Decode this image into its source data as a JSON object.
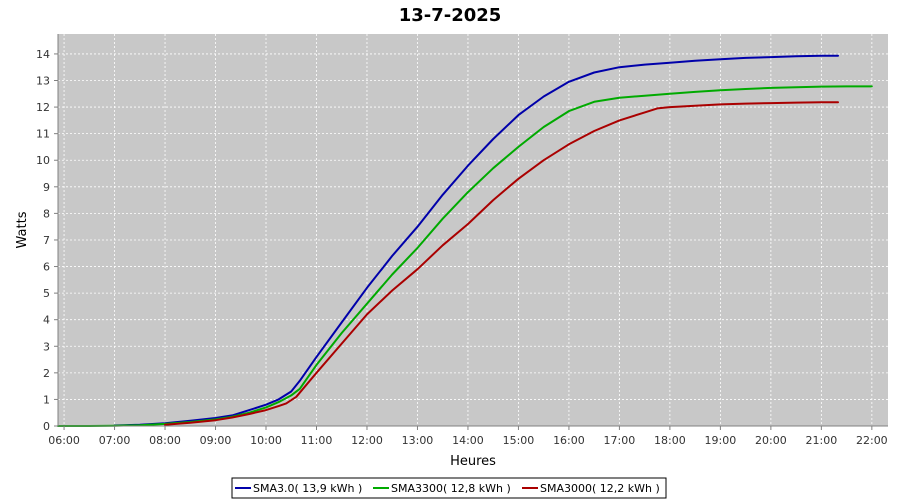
{
  "chart_data": {
    "type": "line",
    "title": "13-7-2025",
    "xlabel": "Heures",
    "ylabel": "Watts",
    "xlim": [
      5.88,
      22.32
    ],
    "ylim": [
      0,
      14.75
    ],
    "grid": true,
    "legend_position": "bottom",
    "x_ticks": [
      {
        "value": 6,
        "label": "06:00"
      },
      {
        "value": 7,
        "label": "07:00"
      },
      {
        "value": 8,
        "label": "08:00"
      },
      {
        "value": 9,
        "label": "09:00"
      },
      {
        "value": 10,
        "label": "10:00"
      },
      {
        "value": 11,
        "label": "11:00"
      },
      {
        "value": 12,
        "label": "12:00"
      },
      {
        "value": 13,
        "label": "13:00"
      },
      {
        "value": 14,
        "label": "14:00"
      },
      {
        "value": 15,
        "label": "15:00"
      },
      {
        "value": 16,
        "label": "16:00"
      },
      {
        "value": 17,
        "label": "17:00"
      },
      {
        "value": 18,
        "label": "18:00"
      },
      {
        "value": 19,
        "label": "19:00"
      },
      {
        "value": 20,
        "label": "20:00"
      },
      {
        "value": 21,
        "label": "21:00"
      },
      {
        "value": 22,
        "label": "22:00"
      }
    ],
    "y_ticks": [
      {
        "value": 0,
        "label": "0"
      },
      {
        "value": 1,
        "label": "1"
      },
      {
        "value": 2,
        "label": "2"
      },
      {
        "value": 3,
        "label": "3"
      },
      {
        "value": 4,
        "label": "4"
      },
      {
        "value": 5,
        "label": "5"
      },
      {
        "value": 6,
        "label": "6"
      },
      {
        "value": 7,
        "label": "7"
      },
      {
        "value": 8,
        "label": "8"
      },
      {
        "value": 9,
        "label": "9"
      },
      {
        "value": 10,
        "label": "10"
      },
      {
        "value": 11,
        "label": "11"
      },
      {
        "value": 12,
        "label": "12"
      },
      {
        "value": 13,
        "label": "13"
      },
      {
        "value": 14,
        "label": "14"
      }
    ],
    "series": [
      {
        "name": "SMA3.0( 13,9 kWh )",
        "color": "#0000aa",
        "x": [
          7.0,
          7.5,
          8.0,
          8.5,
          9.0,
          9.33,
          9.67,
          10.0,
          10.25,
          10.5,
          10.67,
          11.0,
          11.5,
          12.0,
          12.5,
          13.0,
          13.5,
          14.0,
          14.5,
          15.0,
          15.5,
          16.0,
          16.5,
          17.0,
          17.5,
          18.0,
          18.5,
          19.0,
          19.5,
          20.0,
          20.5,
          21.0,
          21.33
        ],
        "y": [
          0.02,
          0.05,
          0.1,
          0.2,
          0.3,
          0.4,
          0.6,
          0.8,
          1.0,
          1.3,
          1.7,
          2.6,
          3.9,
          5.2,
          6.4,
          7.5,
          8.7,
          9.8,
          10.8,
          11.7,
          12.4,
          12.95,
          13.3,
          13.5,
          13.6,
          13.67,
          13.74,
          13.8,
          13.85,
          13.88,
          13.91,
          13.93,
          13.93
        ]
      },
      {
        "name": "SMA3300( 12,8 kWh )",
        "color": "#00aa00",
        "x": [
          5.88,
          6.5,
          7.0,
          7.5,
          8.0,
          8.5,
          9.0,
          9.33,
          9.67,
          10.0,
          10.25,
          10.5,
          10.67,
          11.0,
          11.5,
          12.0,
          12.5,
          13.0,
          13.5,
          14.0,
          14.5,
          15.0,
          15.5,
          16.0,
          16.5,
          17.0,
          17.5,
          18.0,
          18.5,
          19.0,
          19.5,
          20.0,
          20.5,
          21.0,
          21.5,
          22.0
        ],
        "y": [
          0.0,
          0.0,
          0.01,
          0.03,
          0.08,
          0.15,
          0.25,
          0.35,
          0.5,
          0.7,
          0.9,
          1.15,
          1.4,
          2.3,
          3.5,
          4.6,
          5.7,
          6.7,
          7.8,
          8.8,
          9.7,
          10.5,
          11.25,
          11.85,
          12.2,
          12.35,
          12.43,
          12.5,
          12.57,
          12.63,
          12.68,
          12.72,
          12.75,
          12.77,
          12.78,
          12.78
        ]
      },
      {
        "name": "SMA3000( 12,2 kWh )",
        "color": "#aa0000",
        "x": [
          8.0,
          8.5,
          9.0,
          9.33,
          9.67,
          10.0,
          10.25,
          10.4,
          10.6,
          11.0,
          11.5,
          12.0,
          12.5,
          13.0,
          13.5,
          14.0,
          14.5,
          15.0,
          15.5,
          16.0,
          16.5,
          17.0,
          17.5,
          17.75,
          18.0,
          18.5,
          19.0,
          19.5,
          20.0,
          20.5,
          21.0,
          21.33
        ],
        "y": [
          0.05,
          0.12,
          0.22,
          0.32,
          0.45,
          0.6,
          0.75,
          0.85,
          1.1,
          2.0,
          3.1,
          4.2,
          5.1,
          5.9,
          6.8,
          7.6,
          8.5,
          9.3,
          10.0,
          10.6,
          11.1,
          11.5,
          11.8,
          11.95,
          12.0,
          12.05,
          12.1,
          12.13,
          12.15,
          12.17,
          12.18,
          12.18
        ]
      }
    ]
  }
}
